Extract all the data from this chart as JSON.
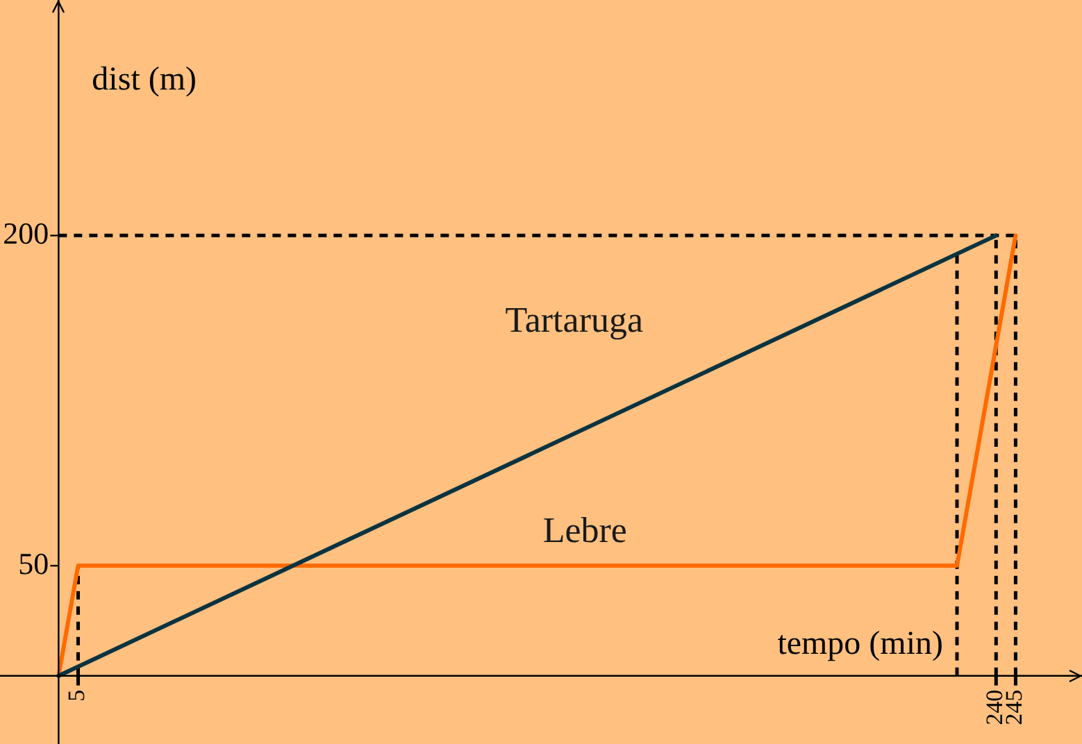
{
  "chart_data": {
    "type": "line",
    "xlabel": "tempo (min)",
    "ylabel": "dist (m)",
    "series": [
      {
        "name": "Tartaruga",
        "color": "#0a3340",
        "x": [
          0,
          240
        ],
        "values": [
          0,
          200
        ]
      },
      {
        "name": "Lebre",
        "color": "#ff6a00",
        "x": [
          0,
          5,
          230,
          245
        ],
        "values": [
          0,
          50,
          50,
          200
        ]
      }
    ],
    "xlim": [
      -15,
      262
    ],
    "ylim": [
      -31,
      307
    ],
    "xticks": [
      5,
      240,
      245
    ],
    "yticks": [
      50,
      200
    ],
    "ref_lines": [
      {
        "axis": "x",
        "value": 5,
        "line_style": "dashed",
        "color": "#000000"
      },
      {
        "axis": "x",
        "value": 230,
        "line_style": "dashed",
        "color": "#000000"
      },
      {
        "axis": "x",
        "value": 240,
        "line_style": "dashed",
        "color": "#000000"
      },
      {
        "axis": "x",
        "value": 245,
        "line_style": "dashed",
        "color": "#000000"
      },
      {
        "axis": "y",
        "value": 200,
        "line_style": "dashed",
        "color": "#000000"
      }
    ],
    "grid": false,
    "legend": false,
    "marker": "none",
    "line_style": "solid"
  }
}
